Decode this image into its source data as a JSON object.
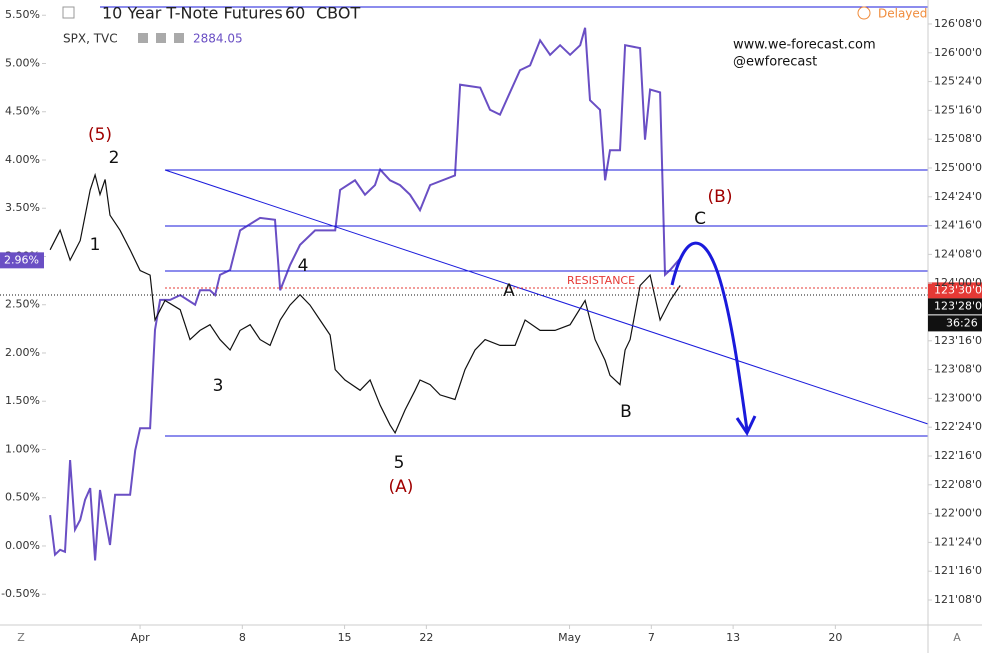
{
  "chart_data": {
    "type": "line",
    "header": {
      "symbol_title": "10 Year T-Note Futures",
      "interval": "60",
      "exchange": "CBOT",
      "compare_symbol": "SPX, TVC",
      "compare_value": "2884.05",
      "status": "Delayed"
    },
    "watermark": [
      "www.we-forecast.com",
      "@ewforecast"
    ],
    "annotations": {
      "w5top": "(5)",
      "w2": "2",
      "w1": "1",
      "w3": "3",
      "w4": "4",
      "w5": "5",
      "wA": "(A)",
      "a": "A",
      "b": "B",
      "c": "C",
      "wB": "(B)",
      "resistance": "RESISTANCE"
    },
    "buttons": [
      "Z",
      "A"
    ],
    "xlim": [
      -6.85,
      38.53
    ],
    "xticks": [
      {
        "value": 0,
        "label": "Apr"
      },
      {
        "value": 5,
        "label": "8"
      },
      {
        "value": 10,
        "label": "15"
      },
      {
        "value": 14,
        "label": "22"
      },
      {
        "value": 21,
        "label": "May"
      },
      {
        "value": 25,
        "label": "7"
      },
      {
        "value": 29,
        "label": "13"
      },
      {
        "value": 34,
        "label": "20"
      }
    ],
    "ylim": [
      -0.819,
      5.658
    ],
    "yticks": [
      {
        "value": -0.5,
        "label": "-0.50%"
      },
      {
        "value": 0,
        "label": "0.00%"
      },
      {
        "value": 0.5,
        "label": "0.50%"
      },
      {
        "value": 1,
        "label": "1.00%"
      },
      {
        "value": 1.5,
        "label": "1.50%"
      },
      {
        "value": 2,
        "label": "2.00%"
      },
      {
        "value": 2.5,
        "label": "2.50%"
      },
      {
        "value": 3,
        "label": "3.00%"
      },
      {
        "value": 3.5,
        "label": "3.50%"
      },
      {
        "value": 4,
        "label": "4.00%"
      },
      {
        "value": 4.5,
        "label": "4.50%"
      },
      {
        "value": 5,
        "label": "5.00%"
      },
      {
        "value": 5.5,
        "label": "5.50%"
      }
    ],
    "y2lim": [
      121.033,
      126.458
    ],
    "y2ticks": [
      {
        "value": 121.25,
        "label": "121'08'0"
      },
      {
        "value": 121.5,
        "label": "121'16'0"
      },
      {
        "value": 121.75,
        "label": "121'24'0"
      },
      {
        "value": 122,
        "label": "122'00'0"
      },
      {
        "value": 122.25,
        "label": "122'08'0"
      },
      {
        "value": 122.5,
        "label": "122'16'0"
      },
      {
        "value": 122.75,
        "label": "122'24'0"
      },
      {
        "value": 123,
        "label": "123'00'0"
      },
      {
        "value": 123.25,
        "label": "123'08'0"
      },
      {
        "value": 123.5,
        "label": "123'16'0"
      },
      {
        "value": 124,
        "label": "124'00'0"
      },
      {
        "value": 124.25,
        "label": "124'08'0"
      },
      {
        "value": 124.5,
        "label": "124'16'0"
      },
      {
        "value": 124.75,
        "label": "124'24'0"
      },
      {
        "value": 125,
        "label": "125'00'0"
      },
      {
        "value": 125.25,
        "label": "125'08'0"
      },
      {
        "value": 125.5,
        "label": "125'16'0"
      },
      {
        "value": 125.75,
        "label": "125'24'0"
      },
      {
        "value": 126,
        "label": "126'00'0"
      },
      {
        "value": 126.25,
        "label": "126'08'0"
      }
    ],
    "series": [
      {
        "name": "SPX",
        "color": "#6a4fc4",
        "axis": "y",
        "x": [
          -4.4,
          -4.16,
          -3.91,
          -3.67,
          -3.42,
          -3.18,
          -2.93,
          -2.69,
          -2.44,
          -2.2,
          -1.96,
          -1.47,
          -1.22,
          -0.49,
          -0.24,
          0,
          0.49,
          0.73,
          0.98,
          1.47,
          1.96,
          2.69,
          2.93,
          3.42,
          3.67,
          3.91,
          4.4,
          4.89,
          5.87,
          6.6,
          6.85,
          7.33,
          7.82,
          8.56,
          9.54,
          9.78,
          10.51,
          11.0,
          11.49,
          11.74,
          12.22,
          12.71,
          13.2,
          13.69,
          14.18,
          15.4,
          15.65,
          16.63,
          17.11,
          17.6,
          18.58,
          19.07,
          19.56,
          20.05,
          20.54,
          21.03,
          21.52,
          21.76,
          22.0,
          22.49,
          22.74,
          22.98,
          23.47,
          23.72,
          24.45,
          24.69,
          24.94,
          25.43,
          25.67,
          25.92,
          26.41
        ],
        "values": [
          0.32,
          -0.09,
          -0.04,
          -0.06,
          0.89,
          0.17,
          0.27,
          0.48,
          0.6,
          -0.15,
          0.58,
          0.01,
          0.53,
          0.53,
          0.99,
          1.22,
          1.22,
          2.24,
          2.55,
          2.55,
          2.6,
          2.5,
          2.65,
          2.65,
          2.6,
          2.81,
          2.86,
          3.27,
          3.4,
          3.38,
          2.65,
          2.91,
          3.12,
          3.27,
          3.27,
          3.69,
          3.79,
          3.64,
          3.74,
          3.9,
          3.79,
          3.74,
          3.64,
          3.48,
          3.74,
          3.84,
          4.78,
          4.75,
          4.52,
          4.47,
          4.93,
          4.98,
          5.24,
          5.09,
          5.19,
          5.09,
          5.19,
          5.37,
          4.62,
          4.52,
          3.79,
          4.1,
          4.1,
          5.19,
          5.16,
          4.21,
          4.73,
          4.7,
          2.81,
          2.86,
          2.98
        ]
      },
      {
        "name": "10 Year T-Note Futures",
        "color": "#111111",
        "axis": "y2",
        "x": [
          -4.4,
          -3.91,
          -3.42,
          -2.93,
          -2.44,
          -2.2,
          -1.96,
          -1.71,
          -1.47,
          -0.98,
          -0.49,
          0,
          0.49,
          0.73,
          1.22,
          1.96,
          2.44,
          2.93,
          3.42,
          3.91,
          4.4,
          4.89,
          5.38,
          5.87,
          6.36,
          6.85,
          7.33,
          7.82,
          8.31,
          8.8,
          9.29,
          9.54,
          10.02,
          10.76,
          11.25,
          11.74,
          12.22,
          12.47,
          12.96,
          13.45,
          13.69,
          14.18,
          14.67,
          15.4,
          15.89,
          16.38,
          16.87,
          17.6,
          18.34,
          18.83,
          19.56,
          20.29,
          21.03,
          21.76,
          22.25,
          22.74,
          22.98,
          23.47,
          23.72,
          23.96,
          24.45,
          24.94,
          25.43,
          25.92,
          26.41
        ],
        "values": [
          124.29,
          124.46,
          124.2,
          124.37,
          124.81,
          124.94,
          124.77,
          124.9,
          124.59,
          124.46,
          124.29,
          124.11,
          124.07,
          123.68,
          123.85,
          123.77,
          123.51,
          123.59,
          123.64,
          123.51,
          123.42,
          123.59,
          123.64,
          123.51,
          123.46,
          123.68,
          123.81,
          123.9,
          123.81,
          123.68,
          123.55,
          123.25,
          123.16,
          123.07,
          123.16,
          122.94,
          122.77,
          122.7,
          122.9,
          123.07,
          123.16,
          123.12,
          123.03,
          122.99,
          123.25,
          123.42,
          123.51,
          123.46,
          123.46,
          123.68,
          123.59,
          123.59,
          123.64,
          123.85,
          123.51,
          123.33,
          123.2,
          123.12,
          123.42,
          123.51,
          123.98,
          124.07,
          123.68,
          123.85,
          123.98
        ]
      }
    ],
    "price_tags": [
      {
        "axis": "y",
        "value": 2.96,
        "label": "2.96%",
        "color": "#6a4fc4"
      },
      {
        "axis": "y2",
        "value": 123.9375,
        "label": "123'30'0",
        "color": "#e53935"
      },
      {
        "axis": "y2",
        "value": 123.875,
        "label": "123'28'0",
        "color": "#111111"
      }
    ],
    "countdown": "36:26"
  }
}
